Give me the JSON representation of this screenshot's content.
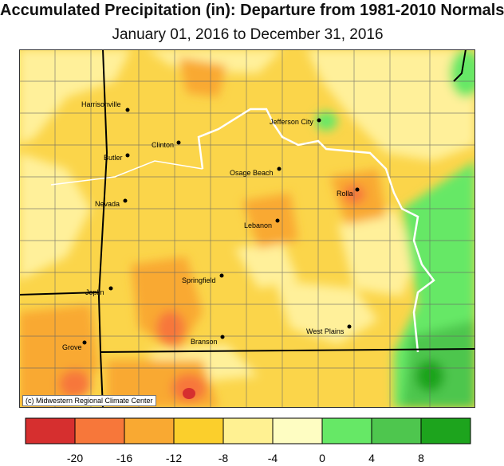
{
  "title": "Accumulated Precipitation (in): Departure from 1981-2010 Normals",
  "subtitle": "January 01, 2016 to December 31, 2016",
  "credit": "(c) Midwestern Regional Climate Center",
  "cities": [
    {
      "name": "Harrisonville"
    },
    {
      "name": "Jefferson City"
    },
    {
      "name": "Clinton"
    },
    {
      "name": "Butler"
    },
    {
      "name": "Osage Beach"
    },
    {
      "name": "Rolla"
    },
    {
      "name": "Nevada"
    },
    {
      "name": "Lebanon"
    },
    {
      "name": "Springfield"
    },
    {
      "name": "Joplin"
    },
    {
      "name": "West Plains"
    },
    {
      "name": "Branson"
    },
    {
      "name": "Grove"
    }
  ],
  "legend": {
    "colors": [
      "#d62f2f",
      "#f7773a",
      "#f9a932",
      "#fbcf2c",
      "#fff192",
      "#fefdc2",
      "#66e866",
      "#4ec64e",
      "#1da41d"
    ],
    "ticks": [
      "-20",
      "-16",
      "-12",
      "-8",
      "-4",
      "0",
      "4",
      "8"
    ]
  },
  "colors": {
    "border_state": "#000000",
    "county_line": "#666666",
    "river": "#ffffff",
    "city_dot": "#000000"
  }
}
